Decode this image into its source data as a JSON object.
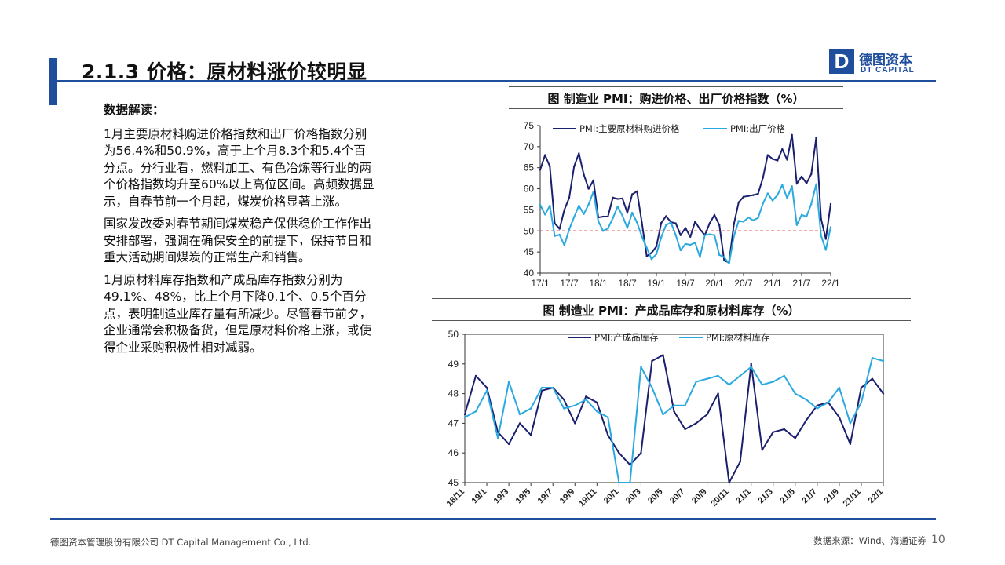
{
  "header": {
    "title": "2.1.3 价格：原材料涨价较明显"
  },
  "logo": {
    "mark": "D",
    "name_cn": "德图资本",
    "name_en": "DT CAPITAL"
  },
  "analysis": {
    "heading": "数据解读：",
    "p1": "1月主要原材料购进价格指数和出厂价格指数分别为56.4%和50.9%，高于上个月8.3个和5.4个百分点。分行业看，燃料加工、有色冶炼等行业的两个价格指数均升至60%以上高位区间。高频数据显示，自春节前一个月起，煤炭价格显著上涨。",
    "p2": "国家发改委对春节期间煤炭稳产保供稳价工作作出安排部署，强调在确保安全的前提下，保持节日和重大活动期间煤炭的正常生产和销售。",
    "p3": "1月原材料库存指数和产成品库存指数分别为49.1%、48%，比上个月下降0.1个、0.5个百分点，表明制造业库存量有所减少。尽管春节前夕，企业通常会积极备货，但是原材料价格上涨，或使得企业采购积极性相对减弱。"
  },
  "chart_data": [
    {
      "type": "line",
      "title": "图  制造业 PMI：购进价格、出厂价格指数（%）",
      "ylim": [
        40,
        75
      ],
      "yticks": [
        40,
        45,
        50,
        55,
        60,
        65,
        70,
        75
      ],
      "xticks": [
        "17/1",
        "17/7",
        "18/1",
        "18/7",
        "19/1",
        "19/7",
        "20/1",
        "20/7",
        "21/1",
        "21/7",
        "22/1"
      ],
      "x": [
        "17/1",
        "17/2",
        "17/3",
        "17/4",
        "17/5",
        "17/6",
        "17/7",
        "17/8",
        "17/9",
        "17/10",
        "17/11",
        "17/12",
        "18/1",
        "18/2",
        "18/3",
        "18/4",
        "18/5",
        "18/6",
        "18/7",
        "18/8",
        "18/9",
        "18/10",
        "18/11",
        "18/12",
        "19/1",
        "19/2",
        "19/3",
        "19/4",
        "19/5",
        "19/6",
        "19/7",
        "19/8",
        "19/9",
        "19/10",
        "19/11",
        "19/12",
        "20/1",
        "20/2",
        "20/3",
        "20/4",
        "20/5",
        "20/6",
        "20/7",
        "20/8",
        "20/9",
        "20/10",
        "20/11",
        "20/12",
        "21/1",
        "21/2",
        "21/3",
        "21/4",
        "21/5",
        "21/6",
        "21/7",
        "21/8",
        "21/9",
        "21/10",
        "21/11",
        "21/12",
        "22/1"
      ],
      "reference_line": 50,
      "series": [
        {
          "name": "PMI:主要原材料购进价格",
          "color": "#1a1f6e",
          "values": [
            64.5,
            68.0,
            65.3,
            51.8,
            50.5,
            55.0,
            57.9,
            65.3,
            68.4,
            63.4,
            60.0,
            62.0,
            53.2,
            53.4,
            53.4,
            57.9,
            57.6,
            57.7,
            54.3,
            58.7,
            59.4,
            52.0,
            44.0,
            44.8,
            46.3,
            51.9,
            53.5,
            52.1,
            51.8,
            49.0,
            50.7,
            48.6,
            52.2,
            50.4,
            49.0,
            51.8,
            53.8,
            51.4,
            43.0,
            42.5,
            51.6,
            56.8,
            58.1,
            58.3,
            58.5,
            58.8,
            62.6,
            68.0,
            67.1,
            66.7,
            69.4,
            66.9,
            72.8,
            61.2,
            62.9,
            61.3,
            63.5,
            72.1,
            52.9,
            48.1,
            56.4
          ]
        },
        {
          "name": "PMI:出厂价格",
          "color": "#2aa9e0",
          "values": [
            56.2,
            53.9,
            56.0,
            48.8,
            49.1,
            46.6,
            50.4,
            53.3,
            56.0,
            54.0,
            56.3,
            59.3,
            52.3,
            50.0,
            50.6,
            53.0,
            55.8,
            53.6,
            50.7,
            54.3,
            52.0,
            48.7,
            46.0,
            43.3,
            44.5,
            48.5,
            51.4,
            52.0,
            49.0,
            45.4,
            46.9,
            46.7,
            47.2,
            43.8,
            49.0,
            49.2,
            49.0,
            44.3,
            43.8,
            42.2,
            48.7,
            52.4,
            52.2,
            53.2,
            52.5,
            53.1,
            56.5,
            58.9,
            57.2,
            58.5,
            60.9,
            57.8,
            60.6,
            51.4,
            53.8,
            53.4,
            56.4,
            61.1,
            48.9,
            45.5,
            50.9
          ]
        }
      ]
    },
    {
      "type": "line",
      "title": "图  制造业 PMI：产成品库存和原材料库存（%）",
      "ylim": [
        45,
        50
      ],
      "yticks": [
        45,
        46,
        47,
        48,
        49,
        50
      ],
      "xticks": [
        "18/11",
        "19/1",
        "19/3",
        "19/5",
        "19/7",
        "19/9",
        "19/11",
        "20/1",
        "20/3",
        "20/5",
        "20/7",
        "20/9",
        "20/11",
        "21/1",
        "21/3",
        "21/5",
        "21/7",
        "21/9",
        "21/11",
        "22/1"
      ],
      "x": [
        "18/11",
        "18/12",
        "19/1",
        "19/2",
        "19/3",
        "19/4",
        "19/5",
        "19/6",
        "19/7",
        "19/8",
        "19/9",
        "19/10",
        "19/11",
        "19/12",
        "20/1",
        "20/2",
        "20/3",
        "20/4",
        "20/5",
        "20/6",
        "20/7",
        "20/8",
        "20/9",
        "20/10",
        "20/11",
        "20/12",
        "21/1",
        "21/2",
        "21/3",
        "21/4",
        "21/5",
        "21/6",
        "21/7",
        "21/8",
        "21/9",
        "21/10",
        "21/11",
        "21/12",
        "22/1"
      ],
      "series": [
        {
          "name": "PMI:产成品库存",
          "color": "#1a1f6e",
          "values": [
            47.3,
            48.6,
            48.2,
            46.7,
            46.3,
            47.0,
            46.6,
            48.1,
            48.2,
            47.8,
            47.0,
            47.9,
            47.7,
            46.6,
            46.0,
            45.6,
            46.0,
            49.1,
            49.3,
            47.4,
            46.8,
            47.0,
            47.3,
            48.0,
            44.9,
            45.7,
            49.0,
            46.1,
            46.7,
            46.8,
            46.5,
            47.1,
            47.6,
            47.7,
            47.2,
            46.3,
            48.2,
            48.5,
            48.0
          ]
        },
        {
          "name": "PMI:原材料库存",
          "color": "#2aa9e0",
          "values": [
            47.2,
            47.4,
            48.1,
            46.5,
            48.4,
            47.3,
            47.5,
            48.2,
            48.2,
            47.5,
            47.6,
            47.8,
            47.4,
            47.2,
            44.8,
            44.7,
            48.9,
            48.2,
            47.3,
            47.6,
            47.6,
            48.4,
            48.5,
            48.6,
            48.3,
            48.6,
            48.9,
            48.3,
            48.4,
            48.6,
            48.0,
            47.8,
            47.5,
            47.7,
            48.2,
            47.0,
            47.7,
            49.2,
            49.1
          ]
        }
      ]
    }
  ],
  "footer": {
    "company": "德图资本管理股份有限公司  DT Capital Management  Co., Ltd.",
    "source": "数据来源：Wind、海通证券",
    "page": "10"
  }
}
